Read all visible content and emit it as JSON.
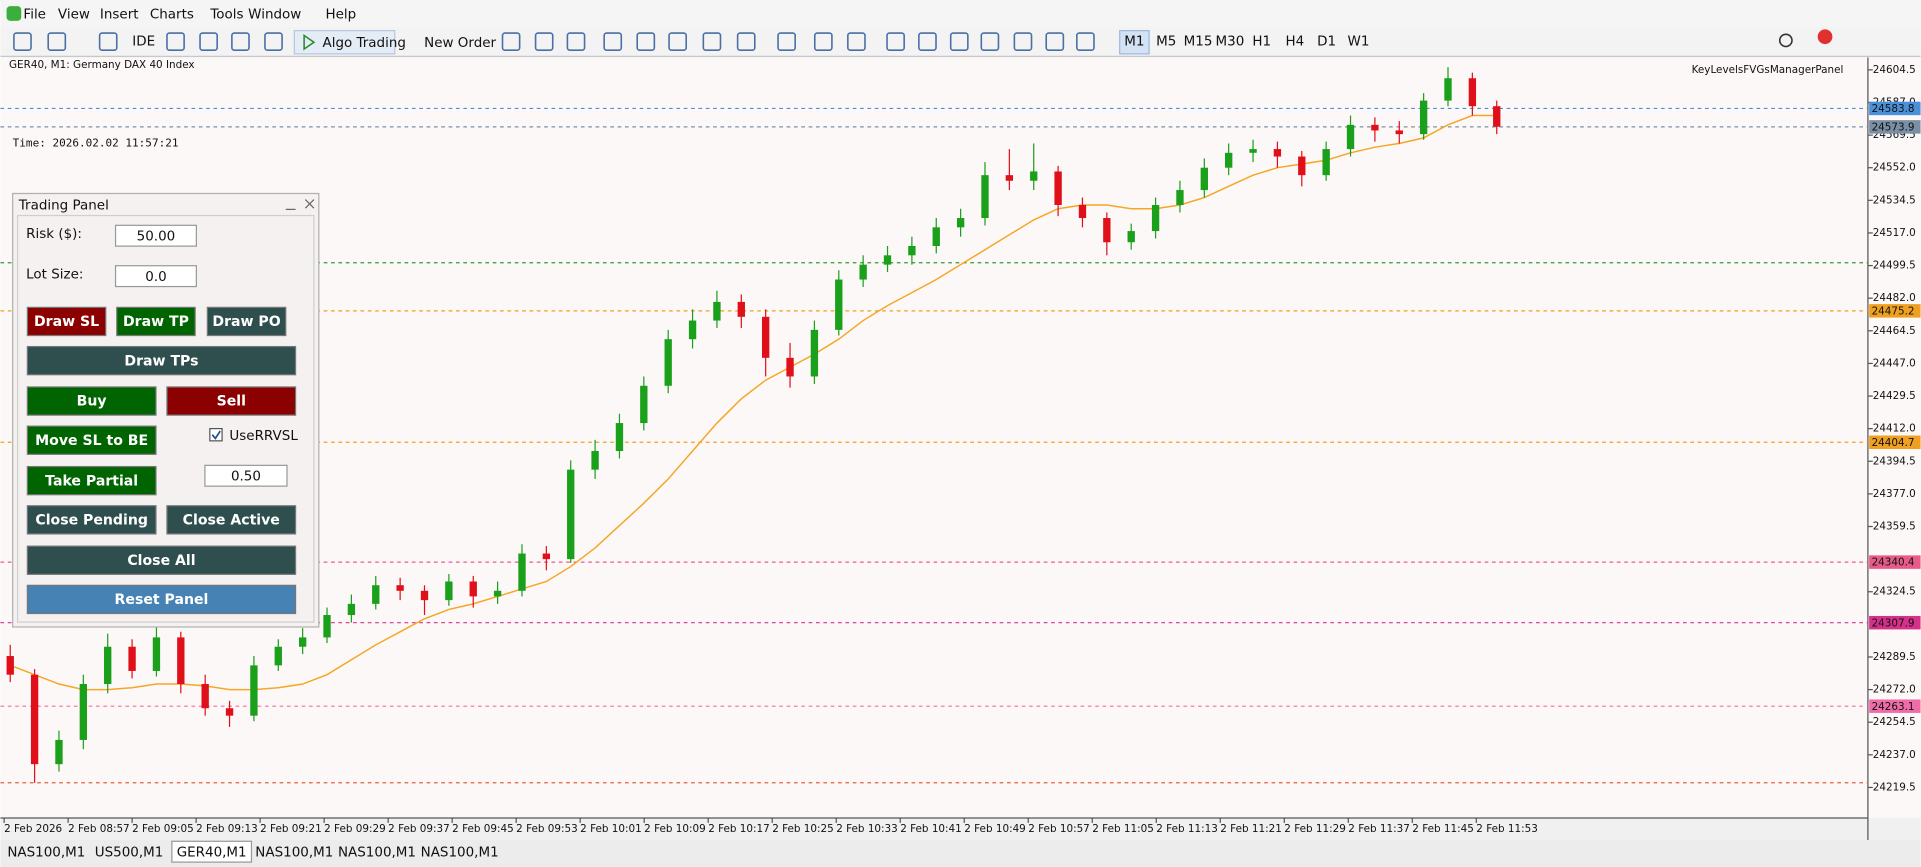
{
  "menu": [
    "File",
    "View",
    "Insert",
    "Charts",
    "Tools",
    "Window",
    "Help"
  ],
  "toolbar": {
    "ide": "IDE",
    "algo_trading": "Algo Trading",
    "new_order": "New Order"
  },
  "timeframes": {
    "items": [
      "M1",
      "M5",
      "M15",
      "M30",
      "H1",
      "H4",
      "D1",
      "W1"
    ],
    "active": 0
  },
  "symbol_info": "GER40, M1:  Germany DAX 40 Index",
  "time_label": "Time: 2026.02.02 11:57:21",
  "indicator_name": "KeyLevelsFVGsManagerPanel",
  "tabs": {
    "items": [
      "NAS100,M1",
      "US500,M1",
      "GER40,M1",
      "NAS100,M1",
      "NAS100,M1",
      "NAS100,M1"
    ],
    "active": 2
  },
  "trading_panel": {
    "title": "Trading Panel",
    "risk_label": "Risk ($):",
    "risk_value": "50.00",
    "lot_label": "Lot Size:",
    "lot_value": "0.0",
    "draw_sl": "Draw SL",
    "draw_tp": "Draw TP",
    "draw_po": "Draw PO",
    "draw_tps": "Draw TPs",
    "buy": "Buy",
    "sell": "Sell",
    "move_sl_be": "Move SL to BE",
    "use_rrvsl": "UseRRVSL",
    "use_rrvsl_checked": true,
    "take_partial": "Take Partial",
    "partial_value": "0.50",
    "close_pending": "Close Pending",
    "close_active": "Close Active",
    "close_all": "Close All",
    "reset_panel": "Reset Panel"
  },
  "chart_data": {
    "type": "candlestick",
    "up_color": "#1aa01a",
    "down_color": "#e0101a",
    "ylim": [
      24203.1,
      24611.1
    ],
    "yticks": [
      24604.5,
      {
        "value": 24587,
        "label": "24587.0"
      },
      24569.5,
      {
        "value": 24552,
        "label": "24552.0"
      },
      24534.5,
      {
        "value": 24517,
        "label": "24517.0"
      },
      24499.5,
      {
        "value": 24482,
        "label": "24482.0"
      },
      24464.5,
      {
        "value": 24447,
        "label": "24447.0"
      },
      24429.5,
      {
        "value": 24412,
        "label": "24412.0"
      },
      24394.5,
      {
        "value": 24377,
        "label": "24377.0"
      },
      24359.5,
      24324.5,
      24289.5,
      {
        "value": 24272,
        "label": "24272.0"
      },
      24254.5,
      {
        "value": 24237,
        "label": "24237.0"
      },
      24219.5
    ],
    "x_labels": [
      "2 Feb 2026",
      "2 Feb 08:57",
      "2 Feb 09:05",
      "2 Feb 09:13",
      "2 Feb 09:21",
      "2 Feb 09:29",
      "2 Feb 09:37",
      "2 Feb 09:45",
      "2 Feb 09:53",
      "2 Feb 10:01",
      "2 Feb 10:09",
      "2 Feb 10:17",
      "2 Feb 10:25",
      "2 Feb 10:33",
      "2 Feb 10:41",
      "2 Feb 10:49",
      "2 Feb 10:57",
      "2 Feb 11:05",
      "2 Feb 11:13",
      "2 Feb 11:21",
      "2 Feb 11:29",
      "2 Feb 11:37",
      "2 Feb 11:45",
      "2 Feb 11:53"
    ],
    "candles": [
      [
        24290,
        24296,
        24276,
        24280
      ],
      [
        24280,
        24283,
        24222,
        24232
      ],
      [
        24232,
        24250,
        24228,
        24245
      ],
      [
        24245,
        24280,
        24240,
        24275
      ],
      [
        24275,
        24302,
        24270,
        24295
      ],
      [
        24295,
        24299,
        24278,
        24282
      ],
      [
        24282,
        24306,
        24279,
        24300
      ],
      [
        24300,
        24303,
        24270,
        24275
      ],
      [
        24275,
        24280,
        24258,
        24262
      ],
      [
        24262,
        24266,
        24252,
        24258
      ],
      [
        24258,
        24290,
        24255,
        24285
      ],
      [
        24285,
        24299,
        24282,
        24295
      ],
      [
        24295,
        24305,
        24291,
        24300
      ],
      [
        24300,
        24316,
        24297,
        24312
      ],
      [
        24312,
        24323,
        24308,
        24318
      ],
      [
        24318,
        24333,
        24315,
        24328
      ],
      [
        24328,
        24332,
        24320,
        24325
      ],
      [
        24325,
        24328,
        24312,
        24320
      ],
      [
        24320,
        24334,
        24317,
        24330
      ],
      [
        24330,
        24333,
        24316,
        24322
      ],
      [
        24322,
        24330,
        24318,
        24325
      ],
      [
        24325,
        24350,
        24322,
        24345
      ],
      [
        24345,
        24349,
        24336,
        24342
      ],
      [
        24342,
        24395,
        24340,
        24390
      ],
      [
        24390,
        24406,
        24385,
        24400
      ],
      [
        24400,
        24420,
        24396,
        24415
      ],
      [
        24415,
        24440,
        24411,
        24435
      ],
      [
        24435,
        24465,
        24431,
        24460
      ],
      [
        24460,
        24476,
        24455,
        24470
      ],
      [
        24470,
        24486,
        24466,
        24480
      ],
      [
        24480,
        24484,
        24466,
        24472
      ],
      [
        24472,
        24476,
        24440,
        24450
      ],
      [
        24450,
        24458,
        24434,
        24440
      ],
      [
        24440,
        24470,
        24436,
        24465
      ],
      [
        24465,
        24497,
        24462,
        24492
      ],
      [
        24492,
        24505,
        24488,
        24500
      ],
      [
        24500,
        24510,
        24496,
        24505
      ],
      [
        24505,
        24515,
        24500,
        24510
      ],
      [
        24510,
        24525,
        24506,
        24520
      ],
      [
        24520,
        24530,
        24515,
        24525
      ],
      [
        24525,
        24555,
        24521,
        24548
      ],
      [
        24548,
        24562,
        24540,
        24545
      ],
      [
        24545,
        24565,
        24540,
        24550
      ],
      [
        24550,
        24553,
        24526,
        24532
      ],
      [
        24532,
        24536,
        24520,
        24525
      ],
      [
        24525,
        24528,
        24505,
        24512
      ],
      [
        24512,
        24522,
        24508,
        24518
      ],
      [
        24518,
        24536,
        24514,
        24532
      ],
      [
        24532,
        24545,
        24528,
        24540
      ],
      [
        24540,
        24557,
        24536,
        24552
      ],
      [
        24552,
        24565,
        24548,
        24560
      ],
      [
        24560,
        24567,
        24555,
        24562
      ],
      [
        24562,
        24566,
        24552,
        24558
      ],
      [
        24558,
        24561,
        24542,
        24548
      ],
      [
        24548,
        24566,
        24545,
        24562
      ],
      [
        24562,
        24580,
        24558,
        24575
      ],
      [
        24575,
        24579,
        24566,
        24572
      ],
      [
        24572,
        24577,
        24565,
        24570
      ],
      [
        24570,
        24592,
        24567,
        24588
      ],
      [
        24588,
        24606,
        24585,
        24600
      ],
      [
        24600,
        24603,
        24580,
        24585
      ],
      [
        24585,
        24588,
        24570,
        24574
      ]
    ],
    "ma": {
      "color": "#f5a623",
      "values": [
        24285,
        24280,
        24275,
        24272,
        24272,
        24273,
        24275,
        24275,
        24274,
        24272,
        24272,
        24273,
        24275,
        24280,
        24288,
        24296,
        24303,
        24310,
        24315,
        24318,
        24322,
        24326,
        24330,
        24338,
        24348,
        24360,
        24372,
        24385,
        24400,
        24415,
        24428,
        24438,
        24445,
        24452,
        24460,
        24470,
        24478,
        24485,
        24492,
        24500,
        24508,
        24516,
        24524,
        24530,
        24532,
        24532,
        24530,
        24530,
        24532,
        24536,
        24542,
        24548,
        24552,
        24554,
        24556,
        24560,
        24563,
        24565,
        24568,
        24575,
        24580,
        24580
      ]
    },
    "levels": [
      {
        "value": 24583.8,
        "color": "#4a90d9",
        "show_label": true
      },
      {
        "value": 24573.9,
        "color": "#7a8fa3",
        "show_label": true
      },
      {
        "value": 24501,
        "color": "#2e9e2e",
        "show_label": false
      },
      {
        "value": 24475.2,
        "color": "#f0a020",
        "show_label": true
      },
      {
        "value": 24404.7,
        "color": "#f0a020",
        "show_label": true
      },
      {
        "value": 24340.4,
        "color": "#e85a8a",
        "show_label": true
      },
      {
        "value": 24307.9,
        "color": "#d6308a",
        "show_label": true
      },
      {
        "value": 24263.1,
        "color": "#f06ca8",
        "show_label": true
      },
      {
        "value": 24222,
        "color": "#e8603a",
        "show_label": false
      }
    ]
  }
}
